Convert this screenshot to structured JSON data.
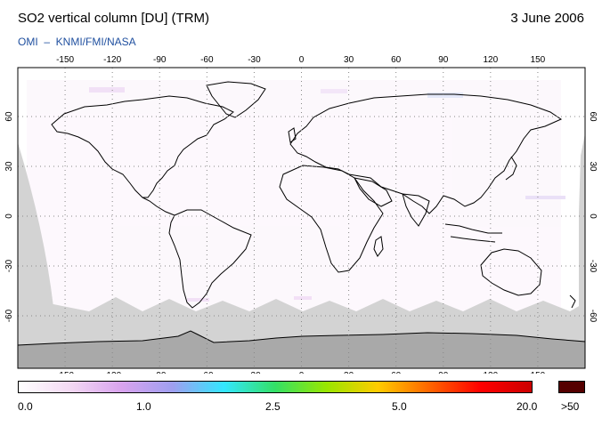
{
  "header": {
    "title": "SO2 vertical column [DU] (TRM)",
    "date": "3 June 2006",
    "subtitle": "OMI  –  KNMI/FMI/NASA"
  },
  "map": {
    "projection": "equirectangular",
    "lon_ticks": [
      "-150",
      "-120",
      "-90",
      "-60",
      "-30",
      "0",
      "30",
      "60",
      "90",
      "120",
      "150"
    ],
    "lat_ticks": [
      "60",
      "30",
      "0",
      "-30",
      "-60"
    ],
    "colors": {
      "no_data": "#d3d3d3",
      "antarctica": "#a9a9a9",
      "coastline": "#000000",
      "gridlines": "#888888"
    }
  },
  "colorbar": {
    "labels": [
      "0.0",
      "1.0",
      "2.5",
      "5.0",
      "20.0",
      ">50"
    ],
    "gradient": [
      "#ffffff",
      "#f3d9f3",
      "#d9a3ee",
      "#9f9ff0",
      "#33e6ff",
      "#33e066",
      "#99e600",
      "#ffcc00",
      "#ff6600",
      "#ff0000",
      "#cc0000"
    ],
    "overflow_color": "#550000"
  }
}
